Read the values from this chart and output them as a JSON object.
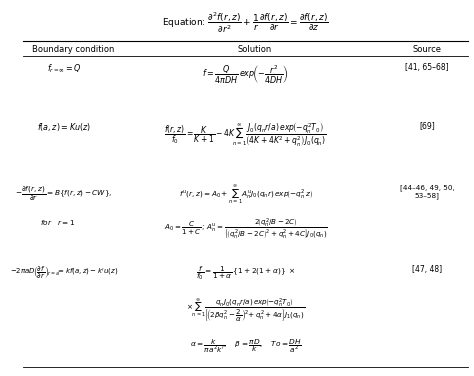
{
  "title_equation": "Equation: $\\dfrac{\\partial^2 f(r,z)}{\\partial r^2} + \\dfrac{1}{r}\\dfrac{\\partial f(r,z)}{\\partial r} = \\dfrac{\\partial f(r,z)}{\\partial z}$",
  "col_headers": [
    "Boundary condition",
    "Solution",
    "Source"
  ],
  "background_color": "#ffffff",
  "text_color": "#000000",
  "rows": [
    {
      "bc": "$f_{r=\\infty} = Q$",
      "sol": "$f = \\dfrac{Q}{4\\pi DH}\\,\\textit{exp}\\!\\left(-\\dfrac{r^2}{4DH}\\right)$",
      "src": "[41, 65–68]"
    },
    {
      "bc": "$f(a,z) = Ku(z)$",
      "sol": "$\\dfrac{f(r,z)}{f_0} = \\dfrac{K}{K+1} - 4K\\!\\displaystyle\\sum_{n=1}^{\\infty}\\dfrac{J_0(q_n r/a)\\,\\textit{exp}\\!\\left(-q_n^2 T_0\\right)}{\\left(4K+4K^2+q_n^2\\right)J_0(q_n)}$",
      "src": "[69]"
    },
    {
      "bc": "$-\\dfrac{\\partial f(r,z)}{\\partial r} = B\\{f(r,z)-CW\\},$\n\n$\\text{for}\\quad r=1$",
      "sol": "$f^u(r,z) = A_0 + \\displaystyle\\sum_{n=1}^{\\infty}A_n^u J_0(q_n r)\\,\\textit{exp}\\!\\left(-q_n^2 z\\right)$\n\n$A_0 = \\dfrac{C}{1+C}\\,;\\, A_n^u = \\dfrac{2\\left(q_n^2/B-2C\\right)}{\\left[\\left(q_n^2/B-2C\\right)^2+q_n^2+4C\\right]J_0(q_n)}$",
      "src": "[44–46, 49, 50,\n53–58]"
    },
    {
      "bc": "$-2\\pi a D\\!\\left(\\dfrac{\\partial f}{\\partial r}\\right)_{\\!r=a}\\!= kf(a,z)-k'u(z)$",
      "sol": "$\\dfrac{f}{f_0} = \\dfrac{1}{1+\\alpha}\\,\\{1+2(1+\\alpha)\\}\\;\\times$\n\n$\\times \\displaystyle\\sum_{n=1}^{\\infty}\\dfrac{q_n J_0(q_n r/a)\\,\\textit{exp}\\!\\left(-q_n^2 T_0\\right)}{\\left[\\left(2\\beta q_n^2 - \\dfrac{2}{\\alpha}\\right)^2+q_n^2+4\\alpha\\right]J_1(q_n)}$\n\n$\\alpha=\\dfrac{k}{\\pi a^2 k'},\\quad \\beta=\\dfrac{\\pi D}{k},\\quad To=\\dfrac{DH}{a^2}$",
      "src": "[47, 48]"
    }
  ]
}
